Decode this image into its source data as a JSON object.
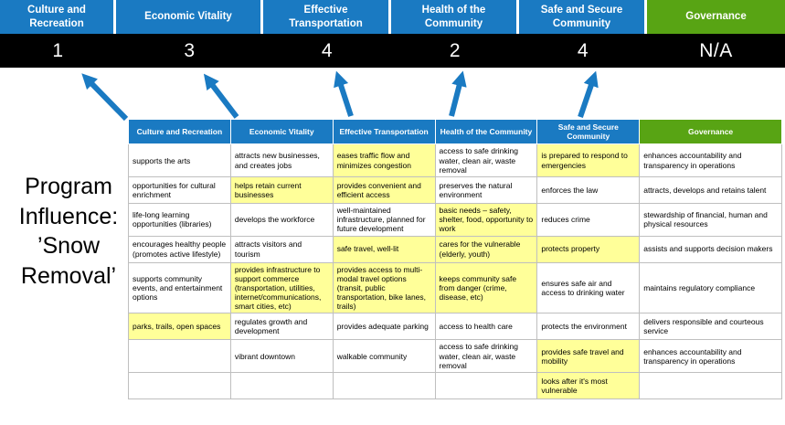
{
  "title": {
    "text": "Program Influence: ’Snow Removal’"
  },
  "colors": {
    "blue": "#1a7ac2",
    "green": "#58a414",
    "band": "#000000",
    "highlight": "#ffff99"
  },
  "summary": {
    "columns": [
      {
        "label": "Culture and Recreation",
        "score": "1",
        "theme": "blue"
      },
      {
        "label": "Economic Vitality",
        "score": "3",
        "theme": "blue"
      },
      {
        "label": "Effective Transportation",
        "score": "4",
        "theme": "blue"
      },
      {
        "label": "Health of the Community",
        "score": "2",
        "theme": "blue"
      },
      {
        "label": "Safe and Secure Community",
        "score": "4",
        "theme": "blue"
      },
      {
        "label": "Governance",
        "score": "N/A",
        "theme": "green"
      }
    ]
  },
  "matrix": {
    "headers": [
      {
        "label": "Culture and Recreation",
        "theme": "blue"
      },
      {
        "label": "Economic Vitality",
        "theme": "blue"
      },
      {
        "label": "Effective Transportation",
        "theme": "blue"
      },
      {
        "label": "Health of the Community",
        "theme": "blue"
      },
      {
        "label": "Safe and Secure Community",
        "theme": "blue"
      },
      {
        "label": "Governance",
        "theme": "green"
      }
    ],
    "rows": [
      [
        {
          "text": "supports the arts",
          "highlight": false
        },
        {
          "text": "attracts new businesses, and creates jobs",
          "highlight": false
        },
        {
          "text": "eases traffic flow and minimizes congestion",
          "highlight": true
        },
        {
          "text": "access to safe drinking water, clean air, waste removal",
          "highlight": false
        },
        {
          "text": "is prepared to respond to emergencies",
          "highlight": true
        },
        {
          "text": "enhances accountability and transparency in operations",
          "highlight": false
        }
      ],
      [
        {
          "text": "opportunities for cultural enrichment",
          "highlight": false
        },
        {
          "text": "helps retain current businesses",
          "highlight": true
        },
        {
          "text": "provides convenient and efficient access",
          "highlight": true
        },
        {
          "text": "preserves the natural environment",
          "highlight": false
        },
        {
          "text": "enforces the law",
          "highlight": false
        },
        {
          "text": "attracts, develops and retains talent",
          "highlight": false
        }
      ],
      [
        {
          "text": "life-long learning opportunities (libraries)",
          "highlight": false
        },
        {
          "text": "develops the workforce",
          "highlight": false
        },
        {
          "text": "well-maintained infrastructure, planned for future development",
          "highlight": false
        },
        {
          "text": "basic needs – safety, shelter, food, opportunity to work",
          "highlight": true
        },
        {
          "text": "reduces crime",
          "highlight": false
        },
        {
          "text": "stewardship of financial, human and physical resources",
          "highlight": false
        }
      ],
      [
        {
          "text": "encourages healthy people (promotes active lifestyle)",
          "highlight": false
        },
        {
          "text": "attracts visitors and tourism",
          "highlight": false
        },
        {
          "text": "safe travel, well-lit",
          "highlight": true
        },
        {
          "text": "cares for the vulnerable (elderly, youth)",
          "highlight": true
        },
        {
          "text": "protects property",
          "highlight": true
        },
        {
          "text": "assists and supports decision makers",
          "highlight": false
        }
      ],
      [
        {
          "text": "supports community events, and entertainment options",
          "highlight": false
        },
        {
          "text": "provides infrastructure to support commerce (transportation, utilities, internet/communications, smart cities, etc)",
          "highlight": true
        },
        {
          "text": "provides access to multi-modal travel options (transit, public transportation, bike lanes, trails)",
          "highlight": true
        },
        {
          "text": "keeps community safe from danger (crime, disease, etc)",
          "highlight": true
        },
        {
          "text": "ensures safe air and access to drinking water",
          "highlight": false
        },
        {
          "text": "maintains regulatory compliance",
          "highlight": false
        }
      ],
      [
        {
          "text": "parks, trails, open spaces",
          "highlight": true
        },
        {
          "text": "regulates growth and development",
          "highlight": false
        },
        {
          "text": "provides adequate parking",
          "highlight": false
        },
        {
          "text": "access to health care",
          "highlight": false
        },
        {
          "text": "protects the environment",
          "highlight": false
        },
        {
          "text": "delivers responsible and courteous service",
          "highlight": false
        }
      ],
      [
        {
          "text": "",
          "highlight": false
        },
        {
          "text": "vibrant downtown",
          "highlight": false
        },
        {
          "text": "walkable community",
          "highlight": false
        },
        {
          "text": "access to safe drinking water, clean air, waste removal",
          "highlight": false
        },
        {
          "text": "provides safe travel and mobility",
          "highlight": true
        },
        {
          "text": "enhances accountability and transparency in operations",
          "highlight": false
        }
      ],
      [
        {
          "text": "",
          "highlight": false
        },
        {
          "text": "",
          "highlight": false
        },
        {
          "text": "",
          "highlight": false
        },
        {
          "text": "",
          "highlight": false
        },
        {
          "text": "looks after it's most vulnerable",
          "highlight": true
        },
        {
          "text": "",
          "highlight": false
        }
      ]
    ]
  }
}
